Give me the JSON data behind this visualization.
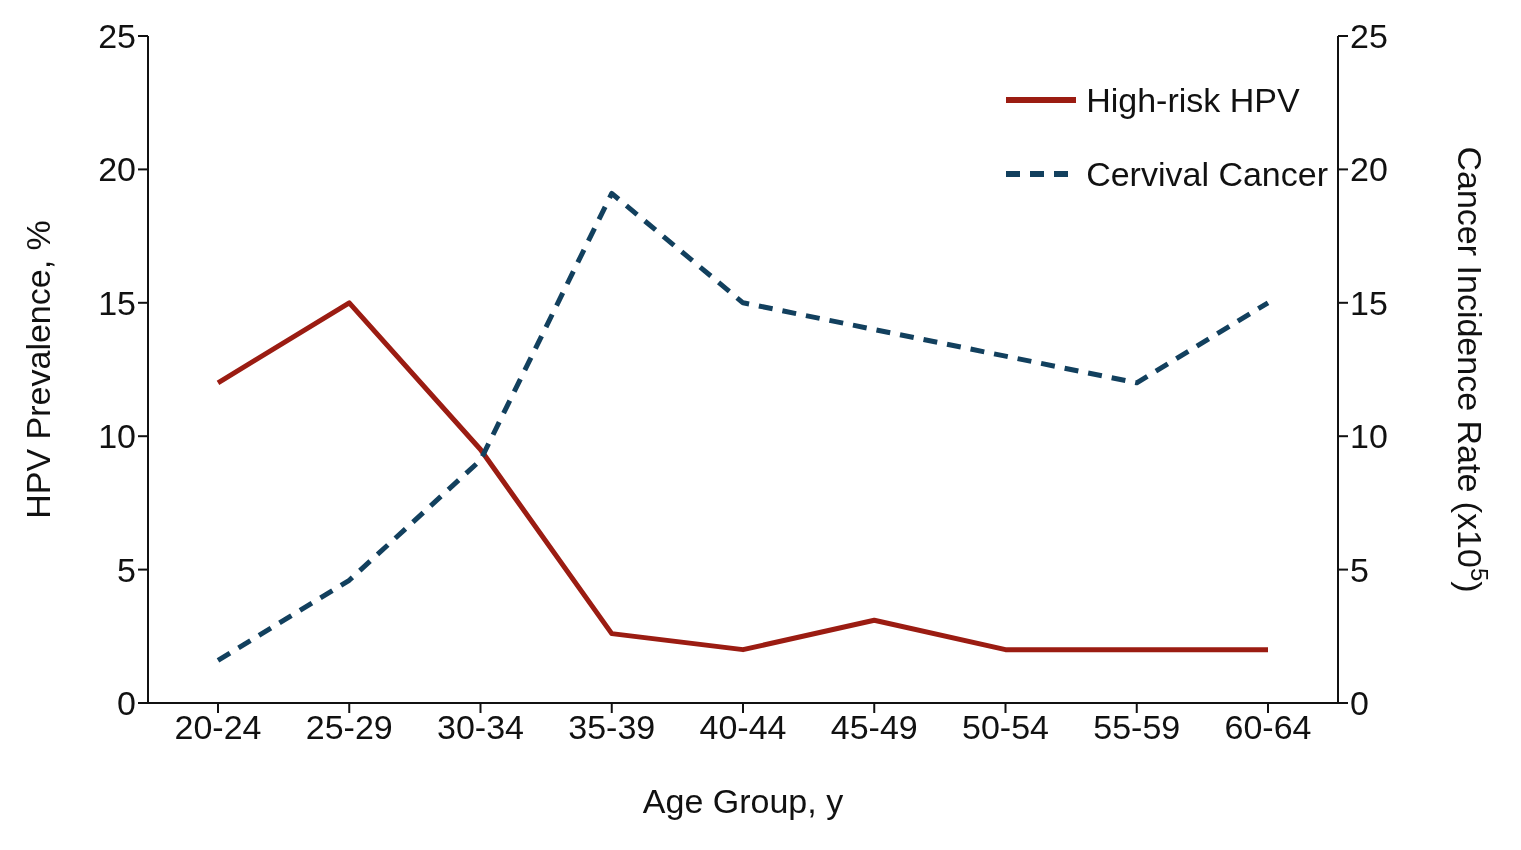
{
  "chart_data": {
    "type": "line",
    "xlabel": "Age Group, y",
    "ylabel": "HPV Prevalence, %",
    "y2label": "Cancer Incidence Rate (x10$^{5}$)",
    "categories": [
      "20-24",
      "25-29",
      "30-34",
      "35-39",
      "40-44",
      "45-49",
      "50-54",
      "55-59",
      "60-64"
    ],
    "series": [
      {
        "name": "High-risk HPV",
        "color": "#9b1c12",
        "line_style": "solid",
        "values": [
          12,
          15,
          9.5,
          2.6,
          2,
          3.1,
          2,
          2,
          2
        ]
      },
      {
        "name": "Cervival Cancer",
        "color": "#12405e",
        "line_style": "dashed",
        "axis": "y2",
        "values": [
          1.6,
          4.6,
          9.1,
          19.1,
          15,
          14,
          13,
          12,
          15
        ]
      }
    ],
    "ylim": [
      0,
      25
    ],
    "yticks": [
      0,
      5,
      10,
      15,
      20,
      25
    ],
    "y2lim": [
      0,
      25
    ],
    "y2ticks": [
      0,
      5,
      10,
      15,
      20,
      25
    ],
    "grid": false,
    "legend": "top right",
    "marker": "none"
  }
}
